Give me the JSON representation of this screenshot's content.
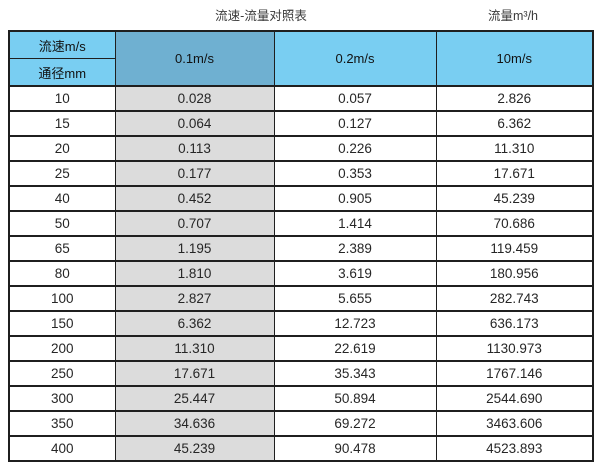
{
  "header": {
    "table_title": "流速-流量对照表",
    "unit_label": "流量m³/h"
  },
  "table": {
    "corner_top": "流速m/s",
    "corner_bottom": "通径mm",
    "velocity_columns": [
      "0.1m/s",
      "0.2m/s",
      "10m/s"
    ],
    "rows": [
      {
        "dn": "10",
        "q1": "0.028",
        "q2": "0.057",
        "q3": "2.826"
      },
      {
        "dn": "15",
        "q1": "0.064",
        "q2": "0.127",
        "q3": "6.362"
      },
      {
        "dn": "20",
        "q1": "0.113",
        "q2": "0.226",
        "q3": "11.310"
      },
      {
        "dn": "25",
        "q1": "0.177",
        "q2": "0.353",
        "q3": "17.671"
      },
      {
        "dn": "40",
        "q1": "0.452",
        "q2": "0.905",
        "q3": "45.239"
      },
      {
        "dn": "50",
        "q1": "0.707",
        "q2": "1.414",
        "q3": "70.686"
      },
      {
        "dn": "65",
        "q1": "1.195",
        "q2": "2.389",
        "q3": "119.459"
      },
      {
        "dn": "80",
        "q1": "1.810",
        "q2": "3.619",
        "q3": "180.956"
      },
      {
        "dn": "100",
        "q1": "2.827",
        "q2": "5.655",
        "q3": "282.743"
      },
      {
        "dn": "150",
        "q1": "6.362",
        "q2": "12.723",
        "q3": "636.173"
      },
      {
        "dn": "200",
        "q1": "11.310",
        "q2": "22.619",
        "q3": "1130.973"
      },
      {
        "dn": "250",
        "q1": "17.671",
        "q2": "35.343",
        "q3": "1767.146"
      },
      {
        "dn": "300",
        "q1": "25.447",
        "q2": "50.894",
        "q3": "2544.690"
      },
      {
        "dn": "350",
        "q1": "34.636",
        "q2": "69.272",
        "q3": "3463.606"
      },
      {
        "dn": "400",
        "q1": "45.239",
        "q2": "90.478",
        "q3": "4523.893"
      }
    ]
  },
  "colors": {
    "header_blue": "#79CEF2",
    "header_steel_blue": "#6FB0D1",
    "gray_column": "#DCDCDC",
    "border": "#1F1F1F"
  },
  "chart_data": {
    "type": "table",
    "title": "流速-流量对照表",
    "columns": [
      "通径mm",
      "0.1m/s",
      "0.2m/s",
      "10m/s"
    ],
    "unit": "流量m³/h",
    "rows": [
      [
        10,
        0.028,
        0.057,
        2.826
      ],
      [
        15,
        0.064,
        0.127,
        6.362
      ],
      [
        20,
        0.113,
        0.226,
        11.31
      ],
      [
        25,
        0.177,
        0.353,
        17.671
      ],
      [
        40,
        0.452,
        0.905,
        45.239
      ],
      [
        50,
        0.707,
        1.414,
        70.686
      ],
      [
        65,
        1.195,
        2.389,
        119.459
      ],
      [
        80,
        1.81,
        3.619,
        180.956
      ],
      [
        100,
        2.827,
        5.655,
        282.743
      ],
      [
        150,
        6.362,
        12.723,
        636.173
      ],
      [
        200,
        11.31,
        22.619,
        1130.973
      ],
      [
        250,
        17.671,
        35.343,
        1767.146
      ],
      [
        300,
        25.447,
        50.894,
        2544.69
      ],
      [
        350,
        34.636,
        69.272,
        3463.606
      ],
      [
        400,
        45.239,
        90.478,
        4523.893
      ]
    ]
  }
}
